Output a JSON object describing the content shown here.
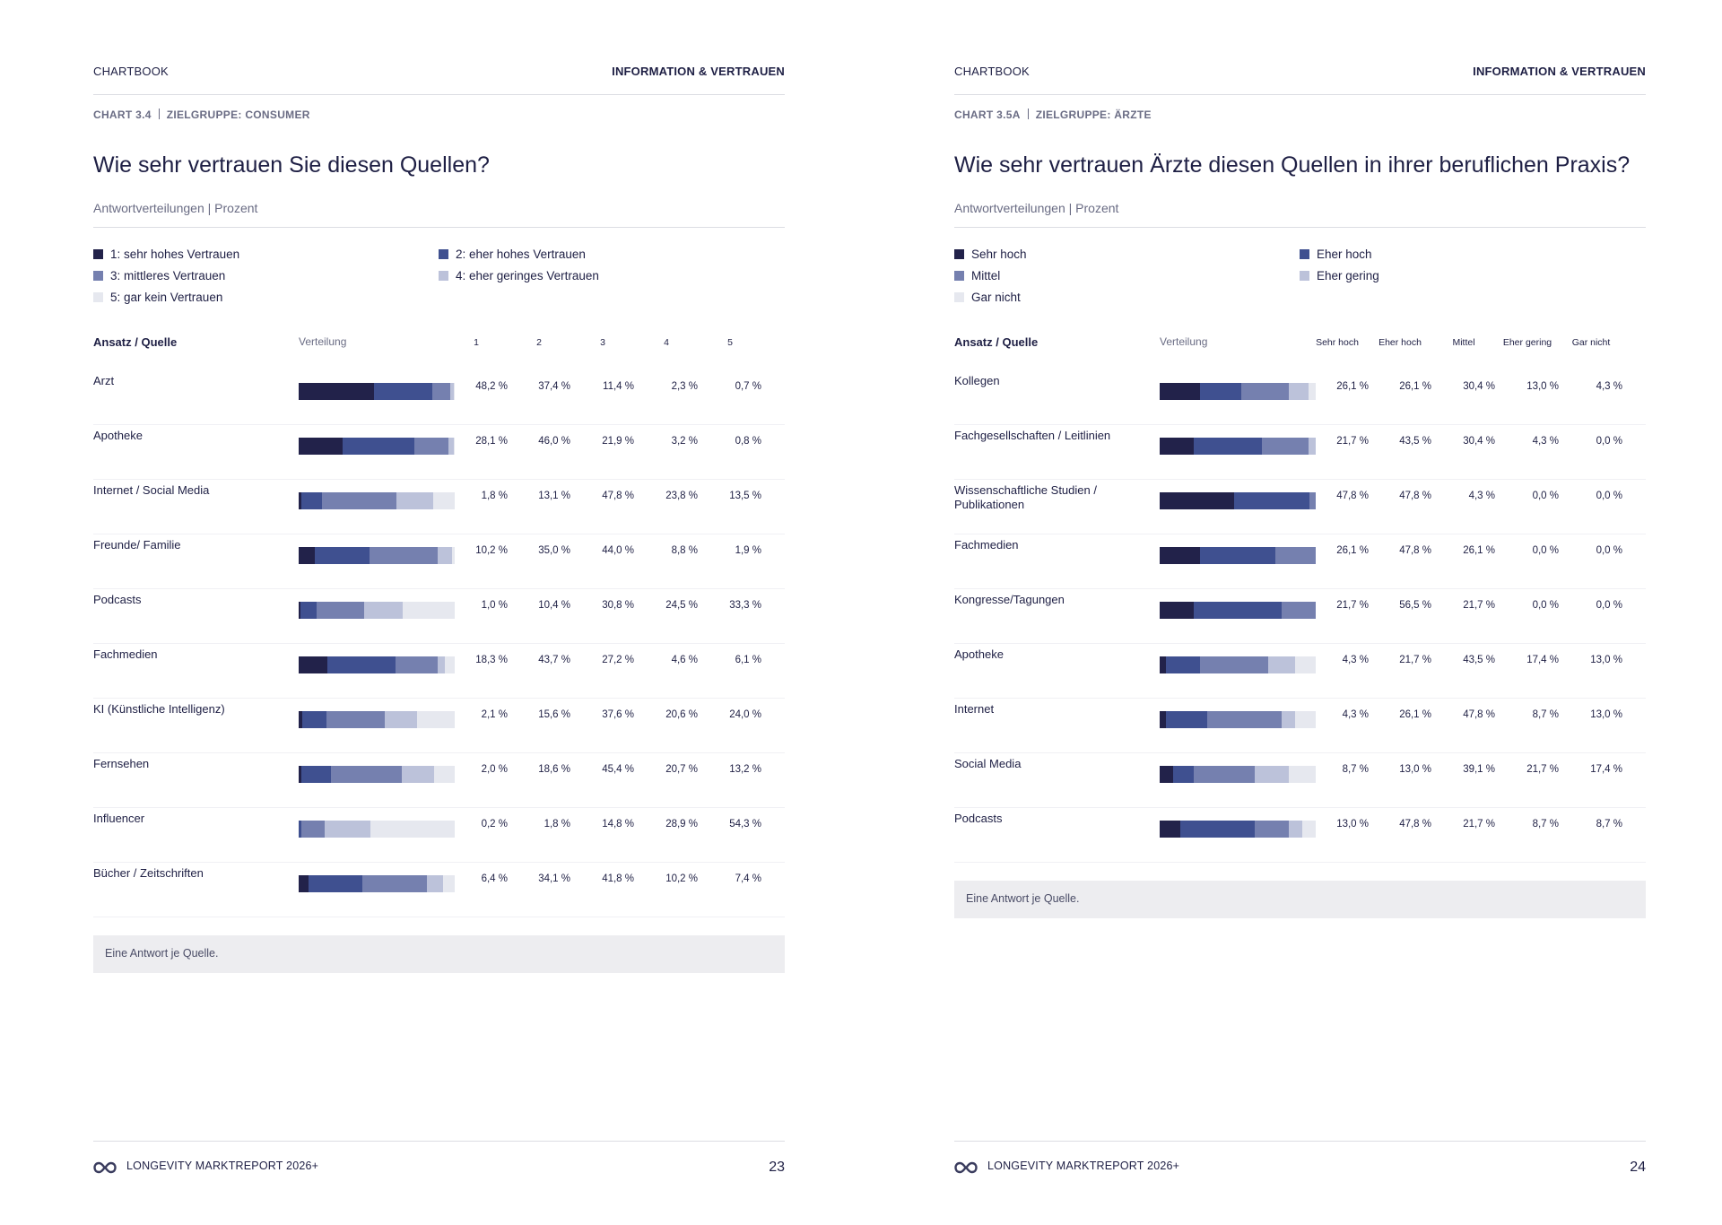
{
  "colors": {
    "c1": "#22224a",
    "c2": "#3f5090",
    "c3": "#7580af",
    "c4": "#bcc2da",
    "c5": "#e6e8ef"
  },
  "pages": [
    {
      "header_left": "CHARTBOOK",
      "header_right": "INFORMATION & VERTRAUEN",
      "chart_id": "CHART 3.4",
      "target_group": "ZIELGRUPPE: CONSUMER",
      "title": "Wie sehr vertrauen Sie diesen Quellen?",
      "subtitle": "Antwortverteilungen | Prozent",
      "source_header": "Ansatz / Quelle",
      "dist_header": "Verteilung",
      "note": "Eine Antwort je Quelle.",
      "footer_brand": "LONGEVITY MARKTREPORT 2026+",
      "page_number": "23"
    },
    {
      "header_left": "CHARTBOOK",
      "header_right": "INFORMATION & VERTRAUEN",
      "chart_id": "CHART 3.5A",
      "target_group": "ZIELGRUPPE: ÄRZTE",
      "title": "Wie sehr vertrauen Ärzte diesen Quellen in ihrer beruflichen Praxis?",
      "subtitle": "Antwortverteilungen | Prozent",
      "source_header": "Ansatz / Quelle",
      "dist_header": "Verteilung",
      "note": "Eine Antwort je Quelle.",
      "footer_brand": "LONGEVITY MARKTREPORT 2026+",
      "page_number": "24"
    }
  ],
  "chart_data": [
    {
      "type": "bar",
      "stacked": true,
      "orientation": "horizontal",
      "title": "Wie sehr vertrauen Sie diesen Quellen?",
      "subtitle": "Antwortverteilungen | Prozent",
      "series_names": [
        "1: sehr hohes Vertrauen",
        "2: eher hohes Vertrauen",
        "3: mittleres Vertrauen",
        "4: eher geringes Vertrauen",
        "5: gar kein Vertrauen"
      ],
      "column_headers": [
        "1",
        "2",
        "3",
        "4",
        "5"
      ],
      "categories": [
        "Arzt",
        "Apotheke",
        "Internet / Social Media",
        "Freunde/ Familie",
        "Podcasts",
        "Fachmedien",
        "KI (Künstliche Intelligenz)",
        "Fernsehen",
        "Influencer",
        "Bücher / Zeitschriften"
      ],
      "values": [
        [
          48.2,
          37.4,
          11.4,
          2.3,
          0.7
        ],
        [
          28.1,
          46.0,
          21.9,
          3.2,
          0.8
        ],
        [
          1.8,
          13.1,
          47.8,
          23.8,
          13.5
        ],
        [
          10.2,
          35.0,
          44.0,
          8.8,
          1.9
        ],
        [
          1.0,
          10.4,
          30.8,
          24.5,
          33.3
        ],
        [
          18.3,
          43.7,
          27.2,
          4.6,
          6.1
        ],
        [
          2.1,
          15.6,
          37.6,
          20.6,
          24.0
        ],
        [
          2.0,
          18.6,
          45.4,
          20.7,
          13.2
        ],
        [
          0.2,
          1.8,
          14.8,
          28.9,
          54.3
        ],
        [
          6.4,
          34.1,
          41.8,
          10.2,
          7.4
        ]
      ],
      "labels": [
        [
          "48,2 %",
          "37,4 %",
          "11,4 %",
          "2,3 %",
          "0,7 %"
        ],
        [
          "28,1 %",
          "46,0 %",
          "21,9 %",
          "3,2 %",
          "0,8 %"
        ],
        [
          "1,8 %",
          "13,1 %",
          "47,8 %",
          "23,8 %",
          "13,5 %"
        ],
        [
          "10,2 %",
          "35,0 %",
          "44,0 %",
          "8,8 %",
          "1,9 %"
        ],
        [
          "1,0 %",
          "10,4 %",
          "30,8 %",
          "24,5 %",
          "33,3 %"
        ],
        [
          "18,3 %",
          "43,7 %",
          "27,2 %",
          "4,6 %",
          "6,1 %"
        ],
        [
          "2,1 %",
          "15,6 %",
          "37,6 %",
          "20,6 %",
          "24,0 %"
        ],
        [
          "2,0 %",
          "18,6 %",
          "45,4 %",
          "20,7 %",
          "13,2 %"
        ],
        [
          "0,2 %",
          "1,8 %",
          "14,8 %",
          "28,9 %",
          "54,3 %"
        ],
        [
          "6,4 %",
          "34,1 %",
          "41,8 %",
          "10,2 %",
          "7,4 %"
        ]
      ]
    },
    {
      "type": "bar",
      "stacked": true,
      "orientation": "horizontal",
      "title": "Wie sehr vertrauen Ärzte diesen Quellen in ihrer beruflichen Praxis?",
      "subtitle": "Antwortverteilungen | Prozent",
      "series_names": [
        "Sehr hoch",
        "Eher hoch",
        "Mittel",
        "Eher gering",
        "Gar nicht"
      ],
      "column_headers": [
        "Sehr hoch",
        "Eher hoch",
        "Mittel",
        "Eher gering",
        "Gar nicht"
      ],
      "categories": [
        "Kollegen",
        "Fachgesellschaften / Leitlinien",
        "Wissenschaftliche Studien / Publikationen",
        "Fachmedien",
        "Kongresse/Tagungen",
        "Apotheke",
        "Internet",
        "Social Media",
        "Podcasts"
      ],
      "values": [
        [
          26.1,
          26.1,
          30.4,
          13.0,
          4.3
        ],
        [
          21.7,
          43.5,
          30.4,
          4.3,
          0.0
        ],
        [
          47.8,
          47.8,
          4.3,
          0.0,
          0.0
        ],
        [
          26.1,
          47.8,
          26.1,
          0.0,
          0.0
        ],
        [
          21.7,
          56.5,
          21.7,
          0.0,
          0.0
        ],
        [
          4.3,
          21.7,
          43.5,
          17.4,
          13.0
        ],
        [
          4.3,
          26.1,
          47.8,
          8.7,
          13.0
        ],
        [
          8.7,
          13.0,
          39.1,
          21.7,
          17.4
        ],
        [
          13.0,
          47.8,
          21.7,
          8.7,
          8.7
        ]
      ],
      "labels": [
        [
          "26,1 %",
          "26,1 %",
          "30,4 %",
          "13,0 %",
          "4,3 %"
        ],
        [
          "21,7 %",
          "43,5 %",
          "30,4 %",
          "4,3 %",
          "0,0 %"
        ],
        [
          "47,8 %",
          "47,8 %",
          "4,3 %",
          "0,0 %",
          "0,0 %"
        ],
        [
          "26,1 %",
          "47,8 %",
          "26,1 %",
          "0,0 %",
          "0,0 %"
        ],
        [
          "21,7 %",
          "56,5 %",
          "21,7 %",
          "0,0 %",
          "0,0 %"
        ],
        [
          "4,3 %",
          "21,7 %",
          "43,5 %",
          "17,4 %",
          "13,0 %"
        ],
        [
          "4,3 %",
          "26,1 %",
          "47,8 %",
          "8,7 %",
          "13,0 %"
        ],
        [
          "8,7 %",
          "13,0 %",
          "39,1 %",
          "21,7 %",
          "17,4 %"
        ],
        [
          "13,0 %",
          "47,8 %",
          "21,7 %",
          "8,7 %",
          "8,7 %"
        ]
      ]
    }
  ]
}
